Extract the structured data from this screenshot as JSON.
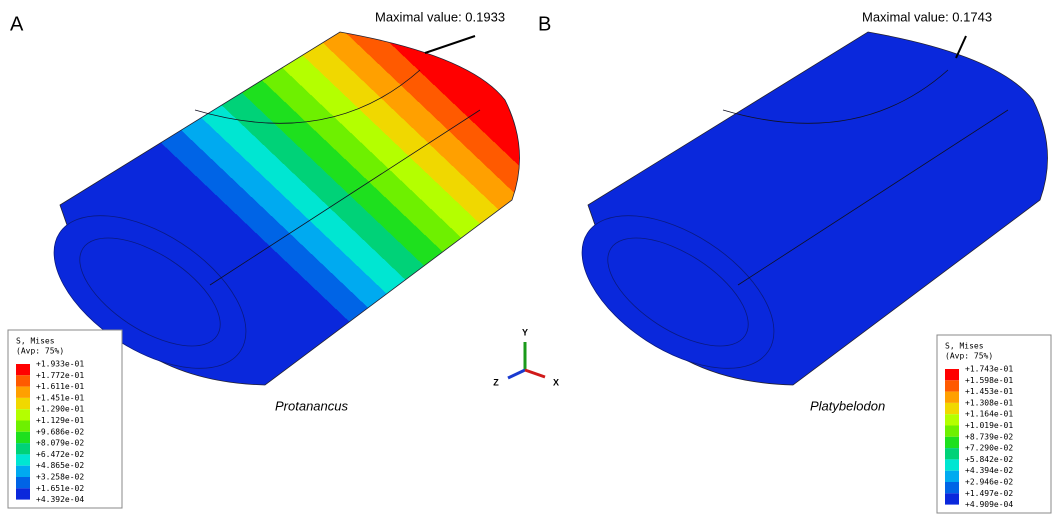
{
  "panels": [
    {
      "label": "A",
      "annotation": "Maximal value: 0.1933",
      "species": "Protanancus",
      "legend": {
        "title": "S, Mises",
        "subtitle": "(Avp: 75%)",
        "values": [
          "+1.933e-01",
          "+1.772e-01",
          "+1.611e-01",
          "+1.451e-01",
          "+1.290e-01",
          "+1.129e-01",
          "+9.686e-02",
          "+8.079e-02",
          "+6.472e-02",
          "+4.865e-02",
          "+3.258e-02",
          "+1.651e-02",
          "+4.392e-04"
        ]
      }
    },
    {
      "label": "B",
      "annotation": "Maximal value: 0.1743",
      "species": "Platybelodon",
      "legend": {
        "title": "S, Mises",
        "subtitle": "(Avp: 75%)",
        "values": [
          "+1.743e-01",
          "+1.598e-01",
          "+1.453e-01",
          "+1.308e-01",
          "+1.164e-01",
          "+1.019e-01",
          "+8.739e-02",
          "+7.290e-02",
          "+5.842e-02",
          "+4.394e-02",
          "+2.946e-02",
          "+1.497e-02",
          "+4.909e-04"
        ]
      }
    }
  ],
  "colormap": [
    "#ff0000",
    "#ff5a00",
    "#ffa000",
    "#f0d800",
    "#b4ff00",
    "#6ef000",
    "#1ee01e",
    "#00d278",
    "#00e6d2",
    "#00aaf0",
    "#0064e6",
    "#0a28dc"
  ],
  "triad": {
    "y": "Y",
    "z": "Z",
    "x": "X"
  }
}
